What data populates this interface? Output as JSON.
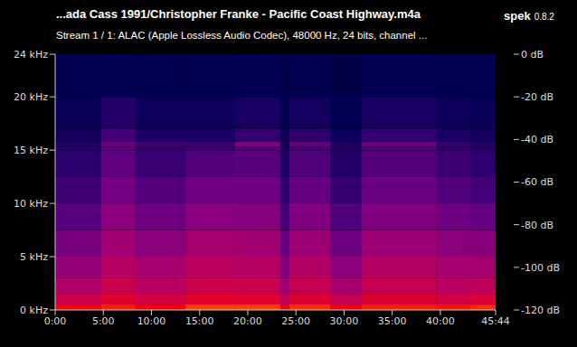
{
  "chart_data": {
    "type": "heatmap",
    "title": "...ada Cass 1991/Christopher Franke - Pacific Coast Highway.m4a",
    "subtitle": "Stream 1 / 1: ALAC (Apple Lossless Audio Codec), 48000 Hz, 24 bits, channel ...",
    "annotations": [
      "spek",
      "0.8.2"
    ],
    "xlim": [
      0,
      2744
    ],
    "xticks": [
      {
        "value": 0,
        "label": "0:00"
      },
      {
        "value": 300,
        "label": "5:00"
      },
      {
        "value": 600,
        "label": "10:00"
      },
      {
        "value": 900,
        "label": "15:00"
      },
      {
        "value": 1200,
        "label": "20:00"
      },
      {
        "value": 1500,
        "label": "25:00"
      },
      {
        "value": 1800,
        "label": "30:00"
      },
      {
        "value": 2100,
        "label": "35:00"
      },
      {
        "value": 2400,
        "label": "40:00"
      },
      {
        "value": 2744,
        "label": "45:44"
      }
    ],
    "ylim": [
      0,
      24
    ],
    "yticks": [
      {
        "value": 0,
        "label": "0 kHz"
      },
      {
        "value": 5,
        "label": "5 kHz"
      },
      {
        "value": 10,
        "label": "10 kHz"
      },
      {
        "value": 15,
        "label": "15 kHz"
      },
      {
        "value": 20,
        "label": "20 kHz"
      },
      {
        "value": 24,
        "label": "24 kHz"
      }
    ],
    "x_bins": [
      0,
      287,
      501,
      811,
      1121,
      1403,
      1459,
      1713,
      1910,
      2377,
      2586,
      2744
    ],
    "y_bins": [
      0,
      0.5,
      1.5,
      3,
      5,
      7.5,
      10,
      12.5,
      15,
      15.3,
      15.8,
      17,
      20,
      24
    ],
    "cells": [
      [
        -48,
        -62,
        -70,
        -76,
        -82,
        -88,
        -93,
        -97,
        -98,
        -98,
        -101,
        -103,
        -105
      ],
      [
        -45,
        -56,
        -63,
        -68,
        -73,
        -78,
        -83,
        -87,
        -89,
        -84,
        -92,
        -98,
        -104
      ],
      [
        -48,
        -60,
        -67,
        -72,
        -78,
        -84,
        -89,
        -94,
        -96,
        -92,
        -99,
        -102,
        -105
      ],
      [
        -42,
        -55,
        -62,
        -67,
        -72,
        -78,
        -84,
        -89,
        -94,
        -94,
        -99,
        -102,
        -105
      ],
      [
        -42,
        -56,
        -63,
        -68,
        -73,
        -79,
        -84,
        -88,
        -90,
        -80,
        -95,
        -100,
        -104
      ],
      [
        -52,
        -66,
        -74,
        -80,
        -86,
        -92,
        -96,
        -99,
        -100,
        -100,
        -102,
        -104,
        -106
      ],
      [
        -44,
        -57,
        -64,
        -69,
        -74,
        -80,
        -86,
        -90,
        -92,
        -86,
        -96,
        -101,
        -105
      ],
      [
        -50,
        -64,
        -72,
        -78,
        -84,
        -90,
        -95,
        -98,
        -99,
        -99,
        -102,
        -104,
        -106
      ],
      [
        -45,
        -57,
        -64,
        -69,
        -74,
        -80,
        -85,
        -89,
        -91,
        -84,
        -95,
        -100,
        -104
      ],
      [
        -46,
        -60,
        -67,
        -72,
        -78,
        -84,
        -90,
        -94,
        -96,
        -95,
        -99,
        -102,
        -105
      ],
      [
        -44,
        -58,
        -66,
        -72,
        -79,
        -86,
        -92,
        -96,
        -98,
        -98,
        -101,
        -103,
        -105
      ]
    ],
    "colorbar": {
      "range": [
        -120,
        0
      ],
      "ticks": [
        {
          "value": 0,
          "label": "0 dB"
        },
        {
          "value": -20,
          "label": "-20 dB"
        },
        {
          "value": -40,
          "label": "-40 dB"
        },
        {
          "value": -60,
          "label": "-60 dB"
        },
        {
          "value": -80,
          "label": "-80 dB"
        },
        {
          "value": -100,
          "label": "-100 dB"
        },
        {
          "value": -120,
          "label": "-120 dB"
        }
      ]
    }
  }
}
